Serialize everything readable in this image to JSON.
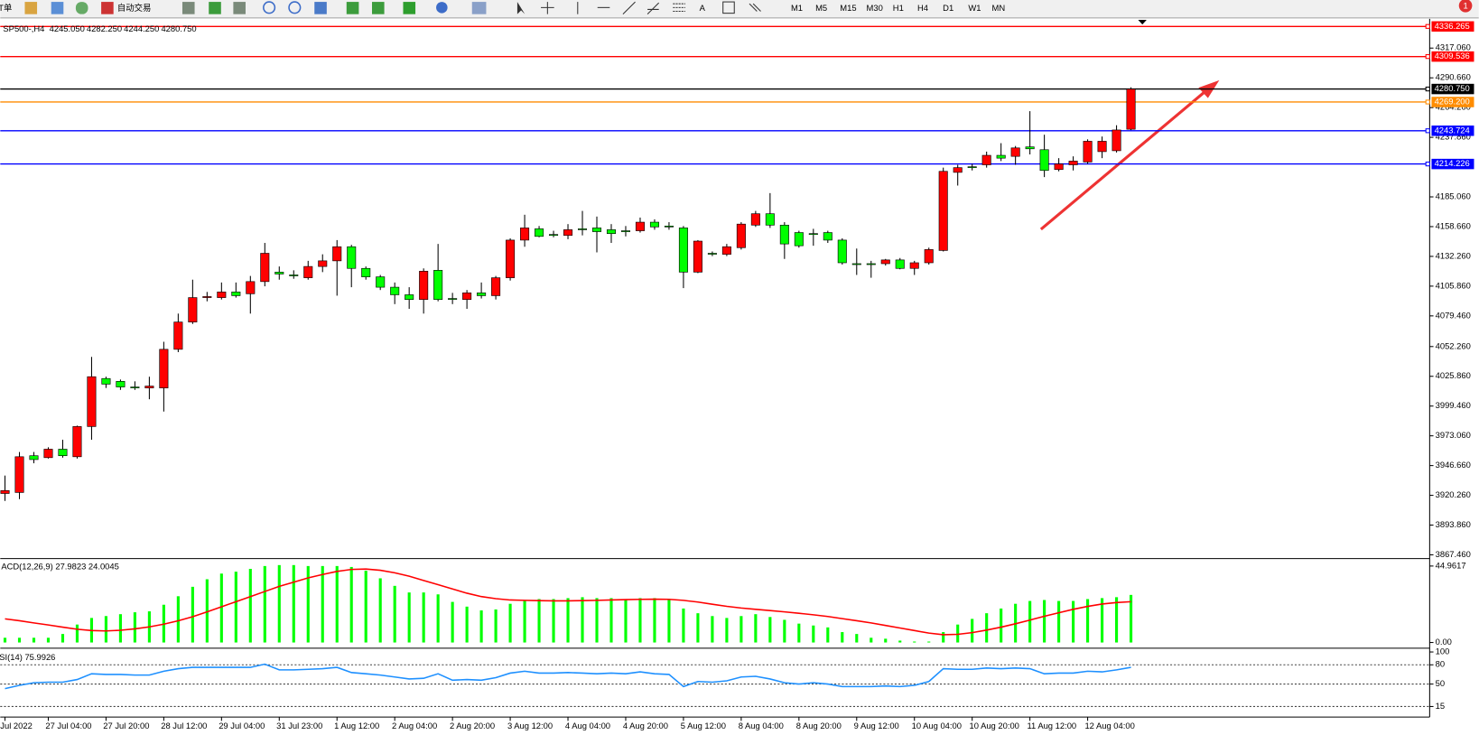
{
  "toolbar": {
    "labels": [
      "T单",
      "自动交易"
    ],
    "periods": [
      "M1",
      "M5",
      "M15",
      "M30",
      "H1",
      "H4",
      "D1",
      "W1",
      "MN"
    ]
  },
  "chart_data": [
    {
      "type": "candlestick",
      "symbol": "SP500-,H4",
      "header_values": [
        "4245.050",
        "4282.250",
        "4244.250",
        "4280.750"
      ],
      "up_color": "#ff0000",
      "down_color": "#00ff00",
      "categories": [
        "Jul 2022",
        null,
        null,
        "27 Jul 04:00",
        null,
        null,
        null,
        "27 Jul 20:00",
        null,
        null,
        null,
        "28 Jul 12:00",
        null,
        null,
        null,
        "29 Jul 04:00",
        null,
        null,
        null,
        "31 Jul 23:00",
        null,
        null,
        null,
        "1 Aug 12:00",
        null,
        null,
        null,
        "2 Aug 04:00",
        null,
        null,
        null,
        "2 Aug 20:00",
        null,
        null,
        null,
        "3 Aug 12:00",
        null,
        null,
        null,
        "4 Aug 04:00",
        null,
        null,
        null,
        "4 Aug 20:00",
        null,
        null,
        null,
        "5 Aug 12:00",
        null,
        null,
        null,
        "8 Aug 04:00",
        null,
        null,
        null,
        "8 Aug 20:00",
        null,
        null,
        null,
        "9 Aug 12:00",
        null,
        null,
        null,
        "10 Aug 04:00",
        null,
        null,
        null,
        "10 Aug 20:00",
        null,
        null,
        null,
        "11 Aug 12:00",
        null,
        null,
        null,
        "12 Aug 04:00",
        null,
        null,
        null
      ],
      "ohlc": [
        [
          3921.9,
          3937.8,
          3915.3,
          3924.5
        ],
        [
          3922.8,
          3958.7,
          3916.9,
          3954.5
        ],
        [
          3955.4,
          3958.7,
          3948.7,
          3952.0
        ],
        [
          3953.7,
          3962.9,
          3952.9,
          3961.2
        ],
        [
          3961.2,
          3969.6,
          3953.7,
          3955.4
        ],
        [
          3954.5,
          3982.1,
          3952.9,
          3981.3
        ],
        [
          3981.3,
          4043.1,
          3969.6,
          4025.5
        ],
        [
          4023.9,
          4025.5,
          4015.5,
          4018.9
        ],
        [
          4021.4,
          4023.0,
          4013.8,
          4016.4
        ],
        [
          4016.4,
          4021.4,
          4013.8,
          4016.0
        ],
        [
          4015.5,
          4025.5,
          4005.5,
          4017.2
        ],
        [
          4015.5,
          4056.5,
          3994.6,
          4049.8
        ],
        [
          4049.8,
          4081.5,
          4047.3,
          4074.0
        ],
        [
          4074.0,
          4111.6,
          4072.3,
          4095.7
        ],
        [
          4095.7,
          4100.7,
          4092.4,
          4096.6
        ],
        [
          4095.7,
          4109.1,
          4094.0,
          4100.7
        ],
        [
          4100.7,
          4109.1,
          4095.7,
          4097.4
        ],
        [
          4099.1,
          4114.9,
          4081.5,
          4109.9
        ],
        [
          4109.9,
          4144.2,
          4105.7,
          4135.0
        ],
        [
          4118.3,
          4123.3,
          4111.6,
          4116.6
        ],
        [
          4115.8,
          4119.9,
          4112.4,
          4115.4
        ],
        [
          4113.3,
          4128.3,
          4111.6,
          4123.3
        ],
        [
          4123.3,
          4134.1,
          4118.3,
          4128.3
        ],
        [
          4128.3,
          4146.7,
          4097.4,
          4140.8
        ],
        [
          4140.8,
          4142.5,
          4104.9,
          4121.6
        ],
        [
          4121.6,
          4123.3,
          4111.6,
          4114.1
        ],
        [
          4114.1,
          4115.8,
          4102.4,
          4104.9
        ],
        [
          4104.9,
          4109.1,
          4089.9,
          4098.2
        ],
        [
          4098.2,
          4104.9,
          4085.7,
          4094.0
        ],
        [
          4094.0,
          4121.6,
          4081.5,
          4119.1
        ],
        [
          4119.9,
          4143.3,
          4092.4,
          4094.0
        ],
        [
          4094.9,
          4099.9,
          4089.9,
          4094.5
        ],
        [
          4094.0,
          4102.4,
          4085.7,
          4099.9
        ],
        [
          4099.9,
          4109.1,
          4094.9,
          4097.4
        ],
        [
          4097.4,
          4114.9,
          4094.0,
          4113.3
        ],
        [
          4113.3,
          4148.3,
          4110.8,
          4146.7
        ],
        [
          4146.7,
          4169.2,
          4140.8,
          4157.5
        ],
        [
          4156.7,
          4159.2,
          4149.2,
          4150.0
        ],
        [
          4151.7,
          4155.0,
          4149.2,
          4151.3
        ],
        [
          4150.9,
          4160.9,
          4147.5,
          4155.9
        ],
        [
          4156.7,
          4172.6,
          4150.9,
          4156.3
        ],
        [
          4157.5,
          4167.6,
          4135.8,
          4154.2
        ],
        [
          4155.9,
          4160.9,
          4144.2,
          4152.5
        ],
        [
          4155.0,
          4159.2,
          4150.0,
          4154.6
        ],
        [
          4155.0,
          4166.7,
          4153.4,
          4162.6
        ],
        [
          4162.6,
          4165.1,
          4155.9,
          4158.4
        ],
        [
          4159.2,
          4162.6,
          4155.9,
          4158.8
        ],
        [
          4157.5,
          4159.2,
          4104.1,
          4118.3
        ],
        [
          4118.3,
          4146.7,
          4117.4,
          4145.8
        ],
        [
          4135.0,
          4136.6,
          4132.5,
          4134.6
        ],
        [
          4134.1,
          4143.3,
          4132.5,
          4140.8
        ],
        [
          4140.0,
          4162.6,
          4138.3,
          4160.9
        ],
        [
          4160.0,
          4172.6,
          4158.4,
          4170.1
        ],
        [
          4170.1,
          4188.4,
          4157.5,
          4160.0
        ],
        [
          4160.0,
          4162.6,
          4130.0,
          4143.3
        ],
        [
          4153.4,
          4155.0,
          4140.0,
          4141.7
        ],
        [
          4152.5,
          4156.7,
          4141.7,
          4152.1
        ],
        [
          4153.4,
          4155.0,
          4144.2,
          4146.7
        ],
        [
          4146.7,
          4148.3,
          4125.0,
          4126.6
        ],
        [
          4125.8,
          4139.2,
          4115.8,
          4125.4
        ],
        [
          4125.8,
          4128.3,
          4113.3,
          4125.3
        ],
        [
          4125.8,
          4130.0,
          4124.1,
          4129.1
        ],
        [
          4129.1,
          4130.8,
          4120.8,
          4121.6
        ],
        [
          4121.6,
          4128.3,
          4115.8,
          4126.6
        ],
        [
          4126.6,
          4140.0,
          4125.0,
          4138.3
        ],
        [
          4137.5,
          4211.0,
          4136.6,
          4207.7
        ],
        [
          4206.8,
          4213.5,
          4195.1,
          4211.0
        ],
        [
          4211.8,
          4214.3,
          4208.5,
          4211.4
        ],
        [
          4213.5,
          4225.2,
          4211.0,
          4221.9
        ],
        [
          4221.9,
          4232.7,
          4216.8,
          4219.4
        ],
        [
          4221.0,
          4230.2,
          4213.5,
          4228.5
        ],
        [
          4229.4,
          4261.1,
          4222.7,
          4227.7
        ],
        [
          4226.9,
          4240.2,
          4202.6,
          4208.5
        ],
        [
          4209.3,
          4219.4,
          4207.7,
          4214.3
        ],
        [
          4213.5,
          4221.0,
          4208.5,
          4216.8
        ],
        [
          4216.0,
          4236.1,
          4214.3,
          4234.4
        ],
        [
          4225.2,
          4238.6,
          4219.4,
          4234.4
        ],
        [
          4226.0,
          4248.6,
          4224.4,
          4244.4
        ],
        [
          4245.05,
          4282.25,
          4244.25,
          4280.75
        ]
      ],
      "ylim": [
        3865.0,
        4341.3
      ],
      "yticks": [
        {
          "value": 4317.06,
          "label": "4317.060"
        },
        {
          "value": 4290.66,
          "label": "4290.660"
        },
        {
          "value": 4264.26,
          "label": "4264.260"
        },
        {
          "value": 4237.86,
          "label": "4237.860"
        },
        {
          "value": 4185.06,
          "label": "4185.060"
        },
        {
          "value": 4158.66,
          "label": "4158.660"
        },
        {
          "value": 4132.26,
          "label": "4132.260"
        },
        {
          "value": 4105.86,
          "label": "4105.860"
        },
        {
          "value": 4079.46,
          "label": "4079.460"
        },
        {
          "value": 4052.26,
          "label": "4052.260"
        },
        {
          "value": 4025.86,
          "label": "4025.860"
        },
        {
          "value": 3999.46,
          "label": "3999.460"
        },
        {
          "value": 3973.06,
          "label": "3973.060"
        },
        {
          "value": 3946.66,
          "label": "3946.660"
        },
        {
          "value": 3920.26,
          "label": "3920.260"
        },
        {
          "value": 3893.86,
          "label": "3893.860"
        },
        {
          "value": 3867.46,
          "label": "3867.460"
        }
      ],
      "levels": [
        {
          "value": 4336.265,
          "label": "4336.265",
          "color": "#ff0000"
        },
        {
          "value": 4309.536,
          "label": "4309.536",
          "color": "#ff0000"
        },
        {
          "value": 4280.75,
          "label": "4280.750",
          "color": "#000000"
        },
        {
          "value": 4269.2,
          "label": "4269.200",
          "color": "#ff8c00"
        },
        {
          "value": 4243.724,
          "label": "4243.724",
          "color": "#0000ff"
        },
        {
          "value": 4214.226,
          "label": "4214.226",
          "color": "#0000ff"
        }
      ]
    },
    {
      "type": "macd",
      "title": "ACD(12,26,9) 27.9823 24.0045",
      "ylim": [
        -2.8,
        48.8
      ],
      "yticks": [
        44.9617,
        {
          "value": 0,
          "label": "0.00"
        }
      ],
      "series": [
        {
          "color": "#00ff00",
          "values": [
            2.78,
            2.78,
            2.78,
            2.78,
            5.0,
            10.55,
            14.43,
            15.54,
            16.65,
            17.76,
            18.32,
            22.2,
            27.2,
            32.75,
            37.19,
            40.52,
            41.63,
            43.3,
            44.96,
            45.52,
            45.52,
            44.96,
            44.96,
            44.96,
            44.4,
            42.18,
            37.74,
            33.3,
            29.42,
            29.42,
            28.3,
            23.87,
            21.09,
            18.87,
            19.43,
            22.76,
            24.98,
            25.53,
            25.53,
            26.09,
            26.64,
            26.09,
            26.09,
            25.53,
            26.09,
            26.09,
            24.98,
            19.98,
            17.21,
            15.54,
            14.43,
            15.54,
            16.65,
            14.99,
            13.32,
            11.1,
            9.99,
            8.88,
            6.11,
            5.0,
            2.78,
            2.22,
            1.11,
            0.56,
            0.56,
            6.11,
            10.55,
            13.88,
            17.21,
            19.98,
            22.76,
            24.42,
            24.98,
            24.42,
            24.42,
            25.53,
            26.09,
            26.64,
            27.9823
          ]
        },
        {
          "color": "#ff0000",
          "values": [
            13.9,
            12.8,
            11.5,
            10.3,
            9.0,
            7.8,
            7.0,
            6.8,
            7.2,
            8.0,
            9.2,
            10.8,
            12.8,
            15.2,
            18.0,
            21.0,
            24.0,
            27.0,
            30.0,
            33.0,
            35.5,
            38.0,
            40.0,
            41.8,
            43.0,
            43.2,
            42.5,
            41.0,
            39.0,
            36.5,
            34.0,
            31.5,
            29.0,
            27.0,
            25.8,
            25.0,
            24.8,
            24.6,
            24.5,
            24.5,
            24.6,
            24.8,
            25.0,
            25.2,
            25.4,
            25.5,
            25.4,
            24.8,
            23.8,
            22.5,
            21.3,
            20.3,
            19.5,
            18.8,
            18.0,
            17.2,
            16.3,
            15.3,
            14.0,
            12.8,
            11.5,
            10.0,
            8.5,
            7.0,
            5.5,
            4.6,
            4.8,
            5.8,
            7.3,
            9.0,
            11.0,
            13.2,
            15.4,
            17.5,
            19.5,
            21.2,
            22.6,
            23.5,
            24.0045
          ]
        }
      ]
    },
    {
      "type": "rsi",
      "title": "SI(14) 75.9926",
      "ylim": [
        0,
        100
      ],
      "yticks": [
        100,
        80,
        50,
        15
      ],
      "levels": [
        80,
        50,
        15
      ],
      "series": [
        {
          "color": "#1e90ff",
          "values": [
            43,
            48,
            52,
            53,
            53,
            57,
            66,
            65,
            65,
            64,
            64,
            70,
            74,
            76,
            76,
            76,
            76,
            76,
            81,
            72,
            72,
            73,
            74,
            76,
            68,
            66,
            64,
            61,
            58,
            59,
            66,
            56,
            57,
            56,
            60,
            67,
            70,
            67,
            67,
            68,
            67,
            66,
            67,
            66,
            69,
            66,
            65,
            46,
            54,
            53,
            55,
            61,
            62,
            58,
            52,
            50,
            52,
            50,
            46,
            46,
            46,
            47,
            46,
            48,
            54,
            74,
            73,
            73,
            75,
            74,
            75,
            74,
            66,
            67,
            67,
            70,
            69,
            72,
            75.9926
          ]
        }
      ]
    }
  ]
}
